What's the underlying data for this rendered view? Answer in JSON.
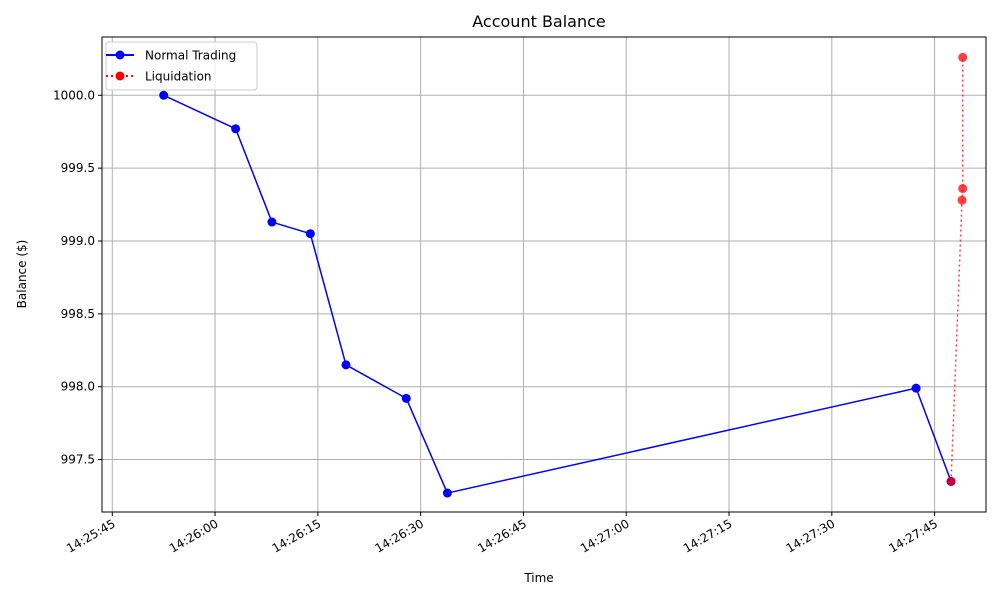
{
  "chart_data": {
    "type": "line",
    "title": "Account Balance",
    "xlabel": "Time",
    "ylabel": "Balance ($)",
    "x_ticks": [
      "14:25:45",
      "14:26:00",
      "14:26:15",
      "14:26:30",
      "14:26:45",
      "14:27:00",
      "14:27:15",
      "14:27:30",
      "14:27:45"
    ],
    "y_ticks": [
      "997.5",
      "998.0",
      "998.5",
      "999.0",
      "999.5",
      "1000.0"
    ],
    "xlim": [
      "14:25:43.5",
      "14:27:52.5"
    ],
    "ylim": [
      997.14,
      1000.4
    ],
    "grid": true,
    "legend_position": "top-left",
    "series": [
      {
        "name": "Normal Trading",
        "color": "#0000ff",
        "line_style": "solid",
        "marker": "circle",
        "points": [
          {
            "x": "14:25:52.5",
            "y": 1000.0
          },
          {
            "x": "14:26:03.0",
            "y": 999.77
          },
          {
            "x": "14:26:08.3",
            "y": 999.13
          },
          {
            "x": "14:26:13.9",
            "y": 999.05
          },
          {
            "x": "14:26:19.1",
            "y": 998.15
          },
          {
            "x": "14:26:27.9",
            "y": 997.92
          },
          {
            "x": "14:26:33.9",
            "y": 997.27
          },
          {
            "x": "14:27:42.3",
            "y": 997.99
          },
          {
            "x": "14:27:47.4",
            "y": 997.35
          }
        ]
      },
      {
        "name": "Liquidation",
        "color": "#ff0000",
        "line_style": "dotted",
        "marker": "circle",
        "points": [
          {
            "x": "14:27:47.4",
            "y": 997.35
          },
          {
            "x": "14:27:49.0",
            "y": 999.28
          },
          {
            "x": "14:27:49.1",
            "y": 999.36
          },
          {
            "x": "14:27:49.1",
            "y": 1000.26
          }
        ]
      }
    ]
  }
}
